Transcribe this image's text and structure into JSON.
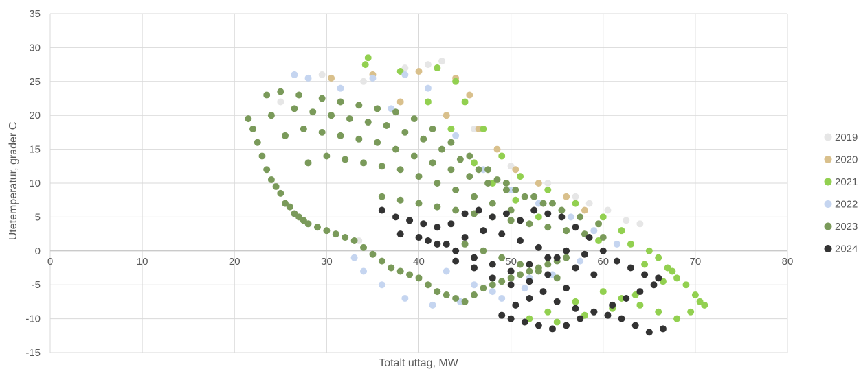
{
  "chart_data": {
    "type": "scatter",
    "title": "",
    "xlabel": "Totalt uttag, MW",
    "ylabel": "Utetemperatur, grader C",
    "xlim": [
      0,
      80
    ],
    "ylim": [
      -15,
      35
    ],
    "x_ticks": [
      "0",
      "10",
      "20",
      "30",
      "40",
      "50",
      "60",
      "70",
      "80"
    ],
    "y_ticks": [
      "35",
      "30",
      "25",
      "20",
      "15",
      "10",
      "5",
      "0",
      "-5",
      "-10",
      "-15"
    ],
    "grid": true,
    "legend_position": "right",
    "series": [
      {
        "name": "2019",
        "color": "#e6e6e6",
        "x": [
          25.0,
          29.5,
          34.0,
          38.5,
          42.5,
          46.0,
          50.0,
          54.0,
          57.0,
          60.5,
          62.5,
          64.0,
          41.0,
          33.5,
          58.5
        ],
        "y": [
          22.0,
          26.0,
          25.0,
          27.0,
          28.0,
          18.0,
          12.5,
          10.0,
          8.0,
          6.0,
          4.5,
          4.0,
          27.5,
          1.5,
          7.0
        ]
      },
      {
        "name": "2020",
        "color": "#d9c08c",
        "x": [
          30.5,
          35.0,
          40.0,
          44.0,
          45.5,
          46.5,
          48.5,
          50.5,
          53.0,
          56.0,
          58.0,
          49.0,
          43.0,
          38.0
        ],
        "y": [
          25.5,
          26.0,
          26.5,
          25.5,
          23.0,
          18.0,
          15.0,
          12.0,
          10.0,
          8.0,
          6.0,
          14.0,
          20.0,
          22.0
        ]
      },
      {
        "name": "2021",
        "color": "#92d050",
        "x": [
          34.5,
          34.2,
          38.0,
          42.0,
          44.0,
          45.0,
          47.0,
          49.0,
          51.0,
          54.0,
          57.0,
          60.0,
          62.0,
          63.0,
          65.0,
          66.0,
          67.0,
          68.0,
          69.0,
          70.0,
          70.5,
          71.0,
          69.5,
          68.0,
          66.0,
          64.0,
          62.0,
          60.0,
          57.0,
          54.0,
          52.0,
          55.0,
          58.0,
          61.0,
          63.5,
          66.5,
          67.5,
          64.5,
          59.5,
          56.0,
          53.0,
          50.5,
          48.0,
          46.0,
          43.5,
          41.0
        ],
        "y": [
          28.5,
          27.5,
          26.5,
          27.0,
          25.0,
          22.0,
          18.0,
          14.0,
          11.0,
          9.0,
          7.0,
          5.0,
          3.0,
          1.0,
          0.0,
          -1.0,
          -2.5,
          -4.0,
          -5.0,
          -6.5,
          -7.5,
          -8.0,
          -9.0,
          -10.0,
          -9.0,
          -8.0,
          -7.0,
          -6.0,
          -7.5,
          -9.0,
          -10.0,
          -10.5,
          -9.5,
          -8.5,
          -6.5,
          -4.5,
          -3.0,
          -2.0,
          1.5,
          3.0,
          5.0,
          7.5,
          10.0,
          13.0,
          18.0,
          22.0
        ]
      },
      {
        "name": "2022",
        "color": "#c5d5f0",
        "x": [
          26.5,
          28.0,
          31.5,
          35.0,
          38.5,
          41.0,
          37.0,
          44.0,
          47.0,
          50.0,
          53.0,
          56.5,
          59.0,
          61.5,
          52.0,
          48.0,
          44.5,
          41.5,
          38.5,
          36.0,
          34.0,
          33.0,
          43.0,
          46.0,
          49.0,
          51.5,
          54.5,
          57.5
        ],
        "y": [
          26.0,
          25.5,
          24.0,
          25.5,
          26.0,
          24.0,
          21.0,
          17.0,
          12.0,
          9.0,
          7.0,
          5.0,
          3.0,
          1.0,
          -4.0,
          -6.0,
          -7.5,
          -8.0,
          -7.0,
          -5.0,
          -3.0,
          -1.0,
          -3.0,
          -5.0,
          -7.0,
          -5.5,
          -3.5,
          -1.5
        ]
      },
      {
        "name": "2023",
        "color": "#7a9a5a",
        "x": [
          21.5,
          22.0,
          22.5,
          23.0,
          23.5,
          24.0,
          24.5,
          25.0,
          25.5,
          26.0,
          26.5,
          27.0,
          27.5,
          28.0,
          29.0,
          30.0,
          31.0,
          32.0,
          33.0,
          34.0,
          35.0,
          36.0,
          37.0,
          38.0,
          39.0,
          40.0,
          41.0,
          42.0,
          43.0,
          44.0,
          45.0,
          46.0,
          47.0,
          48.0,
          49.0,
          50.0,
          51.0,
          52.0,
          53.0,
          54.0,
          55.0,
          56.0,
          23.5,
          25.0,
          27.0,
          29.5,
          31.5,
          33.5,
          35.5,
          37.5,
          39.5,
          41.5,
          43.5,
          45.5,
          47.5,
          49.5,
          24.0,
          26.5,
          28.5,
          30.5,
          32.5,
          34.5,
          36.5,
          38.5,
          40.5,
          42.5,
          44.5,
          46.5,
          48.5,
          50.5,
          52.5,
          54.5,
          25.5,
          27.5,
          29.5,
          31.5,
          33.5,
          35.5,
          37.5,
          39.5,
          41.5,
          43.5,
          45.5,
          47.5,
          49.5,
          51.5,
          53.5,
          55.5,
          57.5,
          59.5,
          28.0,
          30.0,
          32.0,
          34.0,
          36.0,
          38.0,
          40.0,
          42.0,
          44.0,
          46.0,
          48.0,
          50.0,
          36.0,
          38.0,
          40.0,
          42.0,
          44.0,
          46.0,
          48.0,
          50.0,
          52.0,
          54.0,
          56.0,
          58.0,
          60.0,
          45.0,
          47.0,
          49.0,
          51.0,
          53.0,
          55.0
        ],
        "y": [
          19.5,
          18.0,
          16.0,
          14.0,
          12.0,
          10.5,
          9.5,
          8.5,
          7.0,
          6.5,
          5.5,
          5.0,
          4.5,
          4.0,
          3.5,
          3.0,
          2.5,
          2.0,
          1.5,
          0.5,
          -0.5,
          -1.5,
          -2.5,
          -3.0,
          -3.5,
          -4.0,
          -5.0,
          -6.0,
          -6.5,
          -7.0,
          -7.5,
          -6.5,
          -5.5,
          -5.0,
          -4.5,
          -4.0,
          -3.5,
          -3.0,
          -2.5,
          -2.0,
          -1.5,
          -1.0,
          23.0,
          23.5,
          23.0,
          22.5,
          22.0,
          21.5,
          21.0,
          20.5,
          19.5,
          18.0,
          16.0,
          14.0,
          12.0,
          10.0,
          20.0,
          21.0,
          20.5,
          20.0,
          19.5,
          19.0,
          18.5,
          17.5,
          16.5,
          15.0,
          13.5,
          12.0,
          10.5,
          9.0,
          8.0,
          7.0,
          17.0,
          18.0,
          17.5,
          17.0,
          16.5,
          16.0,
          15.0,
          14.0,
          13.0,
          12.0,
          11.0,
          10.0,
          9.0,
          8.0,
          7.0,
          6.0,
          5.0,
          4.0,
          13.0,
          14.0,
          13.5,
          13.0,
          12.5,
          12.0,
          11.0,
          10.0,
          9.0,
          8.0,
          7.0,
          6.0,
          8.0,
          7.5,
          7.0,
          6.5,
          6.0,
          5.5,
          5.0,
          4.5,
          4.0,
          3.5,
          3.0,
          2.5,
          2.0,
          1.0,
          0.0,
          -1.0,
          -2.0,
          -3.0,
          -4.0
        ]
      },
      {
        "name": "2024",
        "color": "#333333",
        "x": [
          36.0,
          37.5,
          39.0,
          40.5,
          42.0,
          43.5,
          45.0,
          46.5,
          48.0,
          49.5,
          51.0,
          52.5,
          54.0,
          55.5,
          57.0,
          58.5,
          60.0,
          61.5,
          63.0,
          64.5,
          66.0,
          66.5,
          65.0,
          63.5,
          62.0,
          60.5,
          59.0,
          57.5,
          56.0,
          54.5,
          53.0,
          51.5,
          50.0,
          49.0,
          50.5,
          52.0,
          53.5,
          55.0,
          57.0,
          59.0,
          61.0,
          62.5,
          64.0,
          65.5,
          38.0,
          40.0,
          42.0,
          44.0,
          46.0,
          48.0,
          50.0,
          52.0,
          54.0,
          56.0,
          58.0,
          41.0,
          43.0,
          45.0,
          47.0,
          49.0,
          51.0,
          53.0,
          55.0,
          57.0,
          59.0,
          44.0,
          46.0,
          48.0,
          50.0,
          52.0,
          54.0,
          56.0
        ],
        "y": [
          6.0,
          5.0,
          4.5,
          4.0,
          3.5,
          4.0,
          5.5,
          6.0,
          5.0,
          5.5,
          4.5,
          6.0,
          5.5,
          5.0,
          3.5,
          2.0,
          0.0,
          -1.5,
          -2.5,
          -3.5,
          -4.0,
          -11.5,
          -12.0,
          -11.0,
          -10.0,
          -9.5,
          -9.0,
          -10.0,
          -11.0,
          -11.5,
          -11.0,
          -10.5,
          -10.0,
          -9.5,
          -8.0,
          -7.0,
          -6.0,
          -7.5,
          -8.5,
          -9.0,
          -8.0,
          -7.0,
          -6.0,
          -5.0,
          2.5,
          2.0,
          1.0,
          0.0,
          -1.0,
          -2.0,
          -3.0,
          -2.0,
          -1.0,
          0.0,
          -0.5,
          1.5,
          1.0,
          2.0,
          3.0,
          2.5,
          1.5,
          0.5,
          -1.0,
          -2.5,
          -3.5,
          -1.5,
          -2.5,
          -4.0,
          -5.0,
          -4.5,
          -3.5,
          -5.5
        ]
      }
    ]
  }
}
